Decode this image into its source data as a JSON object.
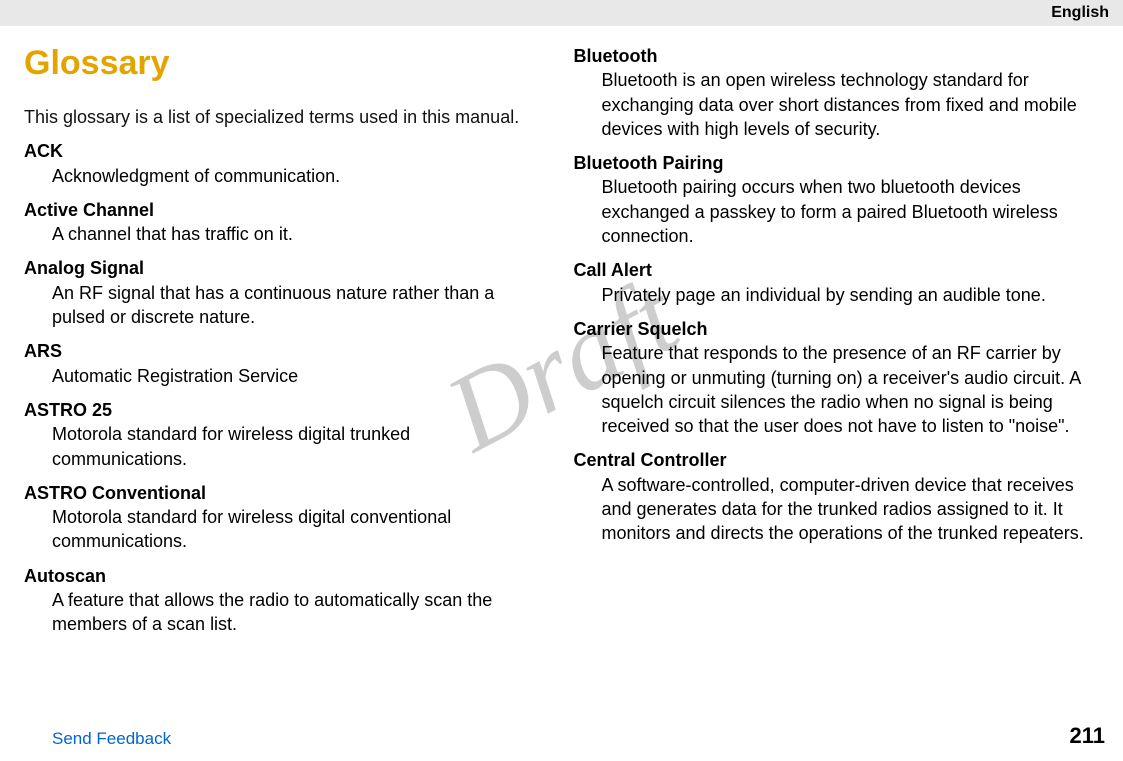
{
  "header": {
    "language": "English"
  },
  "watermark": "Draft",
  "title": "Glossary",
  "intro": "This glossary is a list of specialized terms used in this manual.",
  "left": [
    {
      "term": "ACK",
      "def": "Acknowledgment of communication."
    },
    {
      "term": "Active Channel",
      "def": "A channel that has traffic on it."
    },
    {
      "term": "Analog Signal",
      "def": "An RF signal that has a continuous nature rather than a pulsed or discrete nature."
    },
    {
      "term": "ARS",
      "def": "Automatic Registration Service"
    },
    {
      "term": "ASTRO 25",
      "def": "Motorola standard for wireless digital trunked communications."
    },
    {
      "term": "ASTRO Conventional",
      "def": "Motorola standard for wireless digital conventional communications."
    },
    {
      "term": "Autoscan",
      "def": "A feature that allows the radio to automatically scan the members of a scan list."
    }
  ],
  "right": [
    {
      "term": "Bluetooth",
      "def": "Bluetooth is an open wireless technology standard for exchanging data over short distances from fixed and mobile devices with high levels of security."
    },
    {
      "term": "Bluetooth Pairing",
      "def": "Bluetooth pairing occurs when two bluetooth devices exchanged a passkey to form a paired Bluetooth wireless connection."
    },
    {
      "term": "Call Alert",
      "def": "Privately page an individual by sending an audible tone."
    },
    {
      "term": "Carrier Squelch",
      "def": "Feature that responds to the presence of an RF carrier by opening or unmuting (turning on) a receiver's audio circuit. A squelch circuit silences the radio when no signal is being received so that the user does not have to listen to \"noise\"."
    },
    {
      "term": "Central Controller",
      "def": "A software-controlled, computer-driven device that receives and generates data for the trunked radios assigned to it. It monitors and directs the operations of the trunked repeaters."
    }
  ],
  "footer": {
    "link": "Send Feedback",
    "page": "211"
  }
}
